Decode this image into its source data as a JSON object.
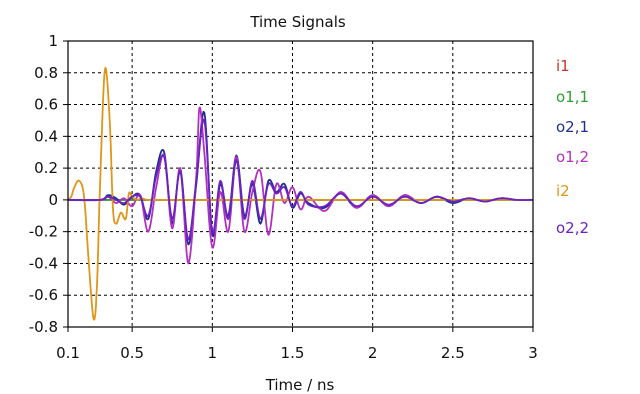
{
  "chart_data": {
    "type": "line",
    "title": "Time Signals",
    "xlabel": "Time / ns",
    "ylabel": "",
    "xlim": [
      0.1,
      3
    ],
    "ylim": [
      -0.8,
      1
    ],
    "xticks": [
      0.1,
      0.5,
      1,
      1.5,
      2,
      2.5,
      3
    ],
    "xtick_labels": [
      "0.1",
      "0.5",
      "1",
      "1.5",
      "2",
      "2.5",
      "3"
    ],
    "yticks": [
      -0.8,
      -0.6,
      -0.4,
      -0.2,
      0,
      0.2,
      0.4,
      0.6,
      0.8,
      1
    ],
    "ytick_labels": [
      "-0.8",
      "-0.6",
      "-0.4",
      "-0.2",
      "0",
      "0.2",
      "0.4",
      "0.6",
      "0.8",
      "1"
    ],
    "grid": true,
    "legend_position": "right",
    "series": [
      {
        "name": "i1",
        "color": "#c0392b",
        "x": [
          0.1,
          3
        ],
        "y": [
          0,
          0
        ]
      },
      {
        "name": "o1,1",
        "color": "#2e9e2e",
        "x": [
          0.1,
          3
        ],
        "y": [
          0,
          0
        ]
      },
      {
        "name": "o2,1",
        "color": "#1f2f8f",
        "x": [
          0.1,
          0.3,
          0.35,
          0.4,
          0.45,
          0.5,
          0.55,
          0.6,
          0.65,
          0.7,
          0.75,
          0.8,
          0.85,
          0.9,
          0.95,
          1.0,
          1.05,
          1.1,
          1.15,
          1.2,
          1.25,
          1.3,
          1.35,
          1.4,
          1.45,
          1.5,
          1.55,
          1.6,
          1.7,
          1.8,
          1.9,
          2.0,
          2.1,
          2.2,
          2.3,
          2.4,
          2.5,
          2.6,
          2.7,
          2.8,
          2.9,
          3.0
        ],
        "y": [
          0,
          0,
          0.03,
          0.01,
          -0.03,
          0.02,
          0.03,
          -0.12,
          0.18,
          0.3,
          -0.15,
          0.2,
          -0.28,
          0.1,
          0.55,
          -0.22,
          0.1,
          -0.1,
          0.28,
          -0.1,
          0.1,
          -0.15,
          0.12,
          0.05,
          0.1,
          -0.05,
          0.04,
          -0.02,
          -0.05,
          0.04,
          -0.05,
          0.03,
          -0.04,
          0.03,
          -0.02,
          0.02,
          -0.02,
          0.01,
          -0.01,
          0.01,
          0,
          0
        ]
      },
      {
        "name": "o1,2",
        "color": "#b030c0",
        "x": [
          0.1,
          0.3,
          0.35,
          0.4,
          0.45,
          0.5,
          0.55,
          0.6,
          0.65,
          0.7,
          0.75,
          0.8,
          0.85,
          0.9,
          0.92,
          0.95,
          1.0,
          1.05,
          1.1,
          1.15,
          1.2,
          1.25,
          1.3,
          1.35,
          1.4,
          1.45,
          1.5,
          1.55,
          1.6,
          1.7,
          1.8,
          1.9,
          2.0,
          2.1,
          2.2,
          2.3,
          2.4,
          2.5,
          2.6,
          2.7,
          2.8,
          2.9,
          3.0
        ],
        "y": [
          0,
          0,
          0.02,
          -0.02,
          0.01,
          -0.04,
          0.03,
          -0.2,
          0.08,
          0.28,
          -0.18,
          0.2,
          -0.4,
          0.15,
          0.58,
          0.3,
          -0.3,
          0.05,
          -0.2,
          0.27,
          -0.2,
          0.05,
          0.18,
          -0.22,
          0.1,
          -0.02,
          0.08,
          -0.06,
          0.02,
          -0.07,
          0.05,
          -0.05,
          0.03,
          -0.04,
          0.03,
          -0.02,
          0.02,
          -0.01,
          0.01,
          -0.01,
          0.01,
          0,
          0
        ]
      },
      {
        "name": "i2",
        "color": "#e0961a",
        "x": [
          0.1,
          0.12,
          0.14,
          0.17,
          0.2,
          0.23,
          0.26,
          0.28,
          0.3,
          0.33,
          0.36,
          0.38,
          0.4,
          0.43,
          0.46,
          0.48,
          0.5,
          0.53,
          0.56,
          0.6,
          0.7,
          1.0,
          3.0
        ],
        "y": [
          0,
          0.02,
          0.08,
          0.12,
          0.02,
          -0.4,
          -0.75,
          -0.55,
          0.1,
          0.82,
          0.5,
          -0.05,
          -0.15,
          -0.08,
          -0.12,
          0.04,
          0.02,
          0.0,
          0.01,
          0,
          0,
          0,
          0
        ]
      },
      {
        "name": "o2,2",
        "color": "#6a22c0",
        "x": [
          0.1,
          0.3,
          0.35,
          0.4,
          0.45,
          0.5,
          0.55,
          0.6,
          0.65,
          0.7,
          0.75,
          0.8,
          0.85,
          0.9,
          0.95,
          1.0,
          1.05,
          1.1,
          1.15,
          1.2,
          1.25,
          1.3,
          1.35,
          1.4,
          1.45,
          1.5,
          1.55,
          1.6,
          1.7,
          1.8,
          1.9,
          2.0,
          2.1,
          2.2,
          2.3,
          2.4,
          2.5,
          2.6,
          2.7,
          2.8,
          2.9,
          3.0
        ],
        "y": [
          0,
          0,
          0.02,
          0.0,
          -0.02,
          0.02,
          0.02,
          -0.1,
          0.15,
          0.27,
          -0.12,
          0.18,
          -0.25,
          0.12,
          0.5,
          -0.2,
          0.12,
          -0.12,
          0.25,
          -0.12,
          0.12,
          -0.12,
          0.1,
          0.04,
          0.08,
          -0.04,
          0.05,
          -0.03,
          -0.04,
          0.04,
          -0.04,
          0.02,
          -0.03,
          0.02,
          -0.02,
          0.02,
          -0.01,
          0.01,
          -0.01,
          0.01,
          0,
          0
        ]
      }
    ]
  }
}
